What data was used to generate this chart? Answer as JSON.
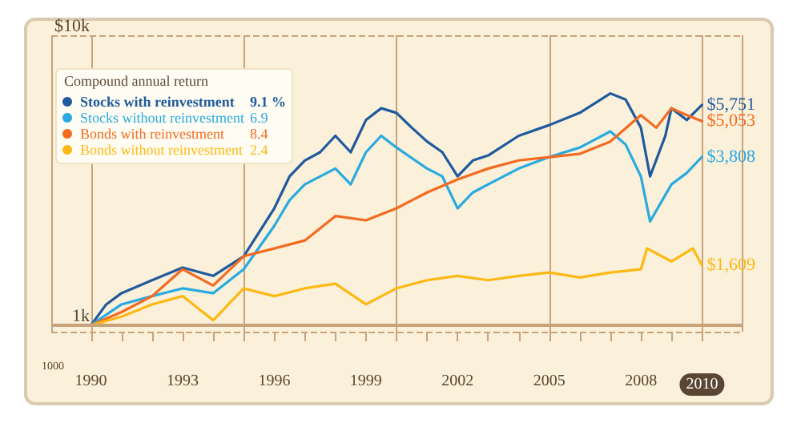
{
  "chart_data": {
    "type": "line",
    "legend_title": "Compound annual return",
    "legend": "top left",
    "log": "y",
    "grid": true,
    "marker": "none",
    "line_style": "solid",
    "xlim": [
      1988.7,
      2011.3
    ],
    "xticks": [
      1990,
      {
        "value": 1991,
        "label": null
      },
      {
        "value": 1992,
        "label": null
      },
      1993,
      {
        "value": 1994,
        "label": null
      },
      {
        "value": 1995,
        "label": null
      },
      1996,
      {
        "value": 1997,
        "label": null
      },
      {
        "value": 1998,
        "label": null
      },
      1999,
      {
        "value": 2000,
        "label": null
      },
      {
        "value": 2001,
        "label": null
      },
      2002,
      {
        "value": 2003,
        "label": null
      },
      {
        "value": 2004,
        "label": null
      },
      2005,
      {
        "value": 2006,
        "label": null
      },
      {
        "value": 2007,
        "label": null
      },
      2008,
      {
        "value": 2009,
        "label": null
      },
      2010
    ],
    "ylim": [
      950,
      10000
    ],
    "yticks": [
      {
        "value": 1000,
        "label": "1k"
      },
      {
        "value": 10000,
        "label": "$10k"
      }
    ],
    "ref_lines": [
      {
        "axis": "y",
        "value": 1000,
        "color": "#c8a27a",
        "line_style": "solid"
      }
    ],
    "annotations": [
      "9.1 %",
      "6.9",
      "8.4",
      "2.4",
      "1000"
    ],
    "series": [
      {
        "name": "Stocks with reinvestment",
        "color": "#1f5a9e",
        "x": [
          1990,
          1990.5,
          1991,
          1992,
          1993,
          1994,
          1995,
          1996,
          1996.5,
          1997,
          1997.5,
          1998,
          1998.5,
          1999,
          1999.5,
          2000,
          2000.5,
          2001,
          2001.5,
          2002,
          2002.5,
          2003,
          2004,
          2005,
          2006,
          2007,
          2007.5,
          2008,
          2008.3,
          2008.8,
          2009,
          2009.5,
          2010
        ],
        "values": [
          1000,
          1180,
          1290,
          1430,
          1580,
          1480,
          1730,
          2530,
          3260,
          3700,
          3950,
          4500,
          3950,
          5100,
          5600,
          5400,
          4800,
          4300,
          3950,
          3260,
          3700,
          3850,
          4500,
          4900,
          5400,
          6300,
          6000,
          4800,
          3260,
          4500,
          5600,
          5100,
          5751
        ],
        "value_labels": [
          null,
          null,
          null,
          null,
          null,
          null,
          null,
          null,
          null,
          null,
          null,
          null,
          null,
          null,
          null,
          null,
          null,
          null,
          null,
          null,
          null,
          null,
          null,
          null,
          null,
          null,
          null,
          null,
          null,
          null,
          null,
          null,
          "$5,751"
        ]
      },
      {
        "name": "Stocks without reinvestment",
        "color": "#29aae1",
        "x": [
          1990,
          1991,
          1992,
          1993,
          1994,
          1995,
          1996,
          1996.5,
          1997,
          1998,
          1998.5,
          1999,
          1999.5,
          2000,
          2001,
          2001.5,
          2002,
          2002.5,
          2003,
          2004,
          2005,
          2006,
          2007,
          2007.5,
          2008,
          2008.3,
          2009,
          2009.5,
          2010
        ],
        "values": [
          1000,
          1180,
          1260,
          1340,
          1290,
          1560,
          2200,
          2700,
          3060,
          3470,
          3060,
          3950,
          4500,
          4100,
          3470,
          3260,
          2530,
          2870,
          3060,
          3470,
          3800,
          4100,
          4660,
          4200,
          3260,
          2280,
          3060,
          3350,
          3808
        ],
        "value_labels": [
          null,
          null,
          null,
          null,
          null,
          null,
          null,
          null,
          null,
          null,
          null,
          null,
          null,
          null,
          null,
          null,
          null,
          null,
          null,
          null,
          null,
          null,
          null,
          null,
          null,
          null,
          null,
          null,
          "$3,808"
        ]
      },
      {
        "name": "Bonds with reinvestment",
        "color": "#f26b21",
        "x": [
          1990,
          1991,
          1992,
          1993,
          1994,
          1995,
          1996,
          1997,
          1998,
          1999,
          2000,
          2001,
          2002,
          2003,
          2004,
          2005,
          2006,
          2007,
          2008,
          2008.5,
          2009,
          2009.5,
          2010
        ],
        "values": [
          1000,
          1110,
          1260,
          1560,
          1370,
          1730,
          1840,
          1960,
          2380,
          2300,
          2530,
          2870,
          3180,
          3470,
          3700,
          3800,
          3900,
          4300,
          5300,
          4800,
          5600,
          5300,
          5053
        ],
        "value_labels": [
          null,
          null,
          null,
          null,
          null,
          null,
          null,
          null,
          null,
          null,
          null,
          null,
          null,
          null,
          null,
          null,
          null,
          null,
          null,
          null,
          null,
          null,
          "$5,053"
        ]
      },
      {
        "name": "Bonds without reinvestment",
        "color": "#fdb913",
        "x": [
          1990,
          1991,
          1992,
          1993,
          1994,
          1995,
          1996,
          1997,
          1998,
          1999,
          2000,
          2001,
          2002,
          2003,
          2004,
          2005,
          2006,
          2007,
          2008,
          2008.2,
          2009,
          2009.7,
          2010
        ],
        "values": [
          1000,
          1070,
          1180,
          1260,
          1040,
          1340,
          1260,
          1340,
          1390,
          1180,
          1340,
          1430,
          1480,
          1430,
          1480,
          1520,
          1460,
          1520,
          1560,
          1840,
          1660,
          1840,
          1609
        ],
        "value_labels": [
          null,
          null,
          null,
          null,
          null,
          null,
          null,
          null,
          null,
          null,
          null,
          null,
          null,
          null,
          null,
          null,
          null,
          null,
          null,
          null,
          null,
          null,
          "$1,609"
        ]
      }
    ]
  }
}
